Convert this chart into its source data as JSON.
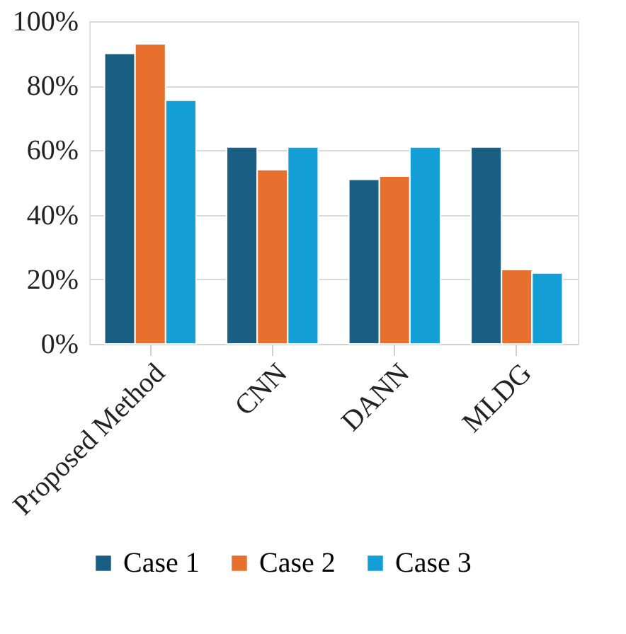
{
  "chart_data": {
    "type": "bar",
    "categories": [
      "Proposed Method",
      "CNN",
      "DANN",
      "MLDG"
    ],
    "series": [
      {
        "name": "Case 1",
        "color": "#1a5e84",
        "values": [
          90,
          61,
          51,
          61
        ]
      },
      {
        "name": "Case 2",
        "color": "#e8702f",
        "values": [
          93,
          54,
          52,
          23
        ]
      },
      {
        "name": "Case 3",
        "color": "#139fd6",
        "values": [
          75.5,
          61,
          61,
          22
        ]
      }
    ],
    "ylim": [
      0,
      100
    ],
    "yticks": [
      {
        "value": 0,
        "label": "0%"
      },
      {
        "value": 20,
        "label": "20%"
      },
      {
        "value": 40,
        "label": "40%"
      },
      {
        "value": 60,
        "label": "60%"
      },
      {
        "value": 80,
        "label": "80%"
      },
      {
        "value": 100,
        "label": "100%"
      }
    ],
    "grid": "y",
    "legend": "bottom"
  }
}
